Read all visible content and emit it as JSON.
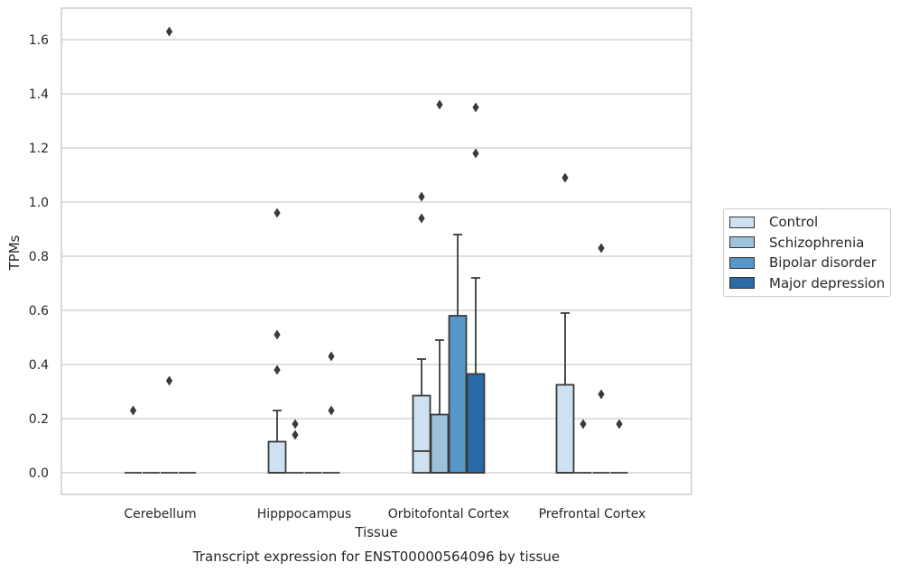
{
  "chart_data": {
    "type": "box",
    "title": "Transcript expression for ENST00000564096 by tissue",
    "xlabel": "Tissue",
    "ylabel": "TPMs",
    "ylim": [
      -0.08,
      1.72
    ],
    "yticks": [
      "0.0",
      "0.2",
      "0.4",
      "0.6",
      "0.8",
      "1.0",
      "1.2",
      "1.4",
      "1.6"
    ],
    "ytick_values": [
      0.0,
      0.2,
      0.4,
      0.6,
      0.8,
      1.0,
      1.2,
      1.4,
      1.6
    ],
    "grid": true,
    "legend_position": "right",
    "categories": [
      "Cerebellum",
      "Hipppocampus",
      "Orbitofontal Cortex",
      "Prefrontal Cortex"
    ],
    "series": [
      {
        "name": "Control",
        "color": "#cfe0f0",
        "boxes": [
          {
            "q1": 0,
            "median": 0,
            "q3": 0,
            "whisker_low": 0,
            "whisker_high": 0,
            "outliers": [
              0.23
            ]
          },
          {
            "q1": 0,
            "median": 0,
            "q3": 0.115,
            "whisker_low": 0,
            "whisker_high": 0.23,
            "outliers": [
              0.38,
              0.51,
              0.96
            ]
          },
          {
            "q1": 0,
            "median": 0.08,
            "q3": 0.285,
            "whisker_low": 0,
            "whisker_high": 0.42,
            "outliers": [
              0.94,
              1.02
            ]
          },
          {
            "q1": 0,
            "median": 0,
            "q3": 0.325,
            "whisker_low": 0,
            "whisker_high": 0.59,
            "outliers": [
              1.09
            ]
          }
        ]
      },
      {
        "name": "Schizophrenia",
        "color": "#9cc3dd",
        "boxes": [
          {
            "q1": 0,
            "median": 0,
            "q3": 0,
            "whisker_low": 0,
            "whisker_high": 0,
            "outliers": []
          },
          {
            "q1": 0,
            "median": 0,
            "q3": 0,
            "whisker_low": 0,
            "whisker_high": 0,
            "outliers": [
              0.14,
              0.18
            ]
          },
          {
            "q1": 0,
            "median": 0,
            "q3": 0.215,
            "whisker_low": 0,
            "whisker_high": 0.49,
            "outliers": [
              1.36
            ]
          },
          {
            "q1": 0,
            "median": 0,
            "q3": 0,
            "whisker_low": 0,
            "whisker_high": 0,
            "outliers": [
              0.18
            ]
          }
        ]
      },
      {
        "name": "Bipolar disorder",
        "color": "#5597c6",
        "boxes": [
          {
            "q1": 0,
            "median": 0,
            "q3": 0,
            "whisker_low": 0,
            "whisker_high": 0,
            "outliers": [
              0.34,
              1.63
            ]
          },
          {
            "q1": 0,
            "median": 0,
            "q3": 0,
            "whisker_low": 0,
            "whisker_high": 0,
            "outliers": []
          },
          {
            "q1": 0,
            "median": 0,
            "q3": 0.58,
            "whisker_low": 0,
            "whisker_high": 0.88,
            "outliers": []
          },
          {
            "q1": 0,
            "median": 0,
            "q3": 0,
            "whisker_low": 0,
            "whisker_high": 0,
            "outliers": [
              0.29,
              0.83
            ]
          }
        ]
      },
      {
        "name": "Major depression",
        "color": "#2a6aa6",
        "boxes": [
          {
            "q1": 0,
            "median": 0,
            "q3": 0,
            "whisker_low": 0,
            "whisker_high": 0,
            "outliers": []
          },
          {
            "q1": 0,
            "median": 0,
            "q3": 0,
            "whisker_low": 0,
            "whisker_high": 0,
            "outliers": [
              0.23,
              0.43
            ]
          },
          {
            "q1": 0,
            "median": 0,
            "q3": 0.365,
            "whisker_low": 0,
            "whisker_high": 0.72,
            "outliers": [
              1.18,
              1.35
            ]
          },
          {
            "q1": 0,
            "median": 0,
            "q3": 0,
            "whisker_low": 0,
            "whisker_high": 0,
            "outliers": [
              0.18
            ]
          }
        ]
      }
    ]
  },
  "colors": {
    "grid": "#cccccc",
    "box_edge": "#3a3a3a",
    "outlier": "#3a3a3a"
  }
}
